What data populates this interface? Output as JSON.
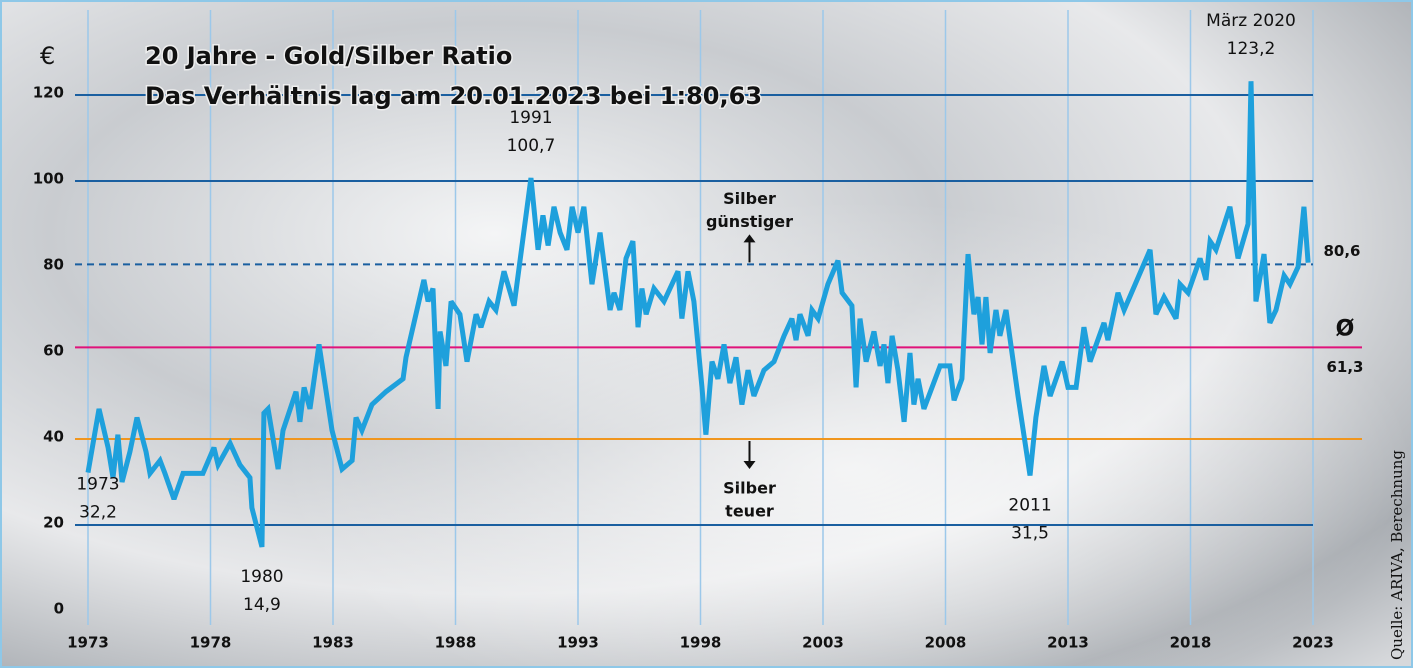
{
  "chart_data": {
    "type": "line",
    "title": "20 Jahre - Gold/Silber Ratio",
    "subtitle": "Das Verhältnis lag am 20.01.2023 bei 1:80,63",
    "y_unit": "€",
    "source": "Quelle: ARIVA, Berechnung",
    "xlim": [
      1972.4,
      2025.2
    ],
    "xticks": [
      1973,
      1978,
      1983,
      1988,
      1993,
      1998,
      2003,
      2008,
      2013,
      2018,
      2023
    ],
    "ylim": [
      0,
      125
    ],
    "yticks": [
      0,
      20,
      40,
      60,
      80,
      100,
      120
    ],
    "grid": true,
    "series": [
      {
        "name": "Gold/Silber Ratio",
        "color": "#1ea0dc",
        "x": [
          1973.0,
          1973.45,
          1973.82,
          1974.02,
          1974.22,
          1974.39,
          1974.71,
          1975.0,
          1975.37,
          1975.53,
          1975.94,
          1976.14,
          1976.51,
          1976.88,
          1977.69,
          1978.14,
          1978.31,
          1978.8,
          1979.2,
          1979.61,
          1979.69,
          1980.1,
          1980.18,
          1980.35,
          1980.76,
          1980.96,
          1981.49,
          1981.65,
          1981.82,
          1982.06,
          1982.43,
          1982.96,
          1983.37,
          1983.78,
          1983.94,
          1984.18,
          1984.59,
          1985.16,
          1985.86,
          1985.98,
          1986.71,
          1986.88,
          1987.08,
          1987.29,
          1987.37,
          1987.61,
          1987.82,
          1988.18,
          1988.47,
          1988.84,
          1989.04,
          1989.37,
          1989.65,
          1989.98,
          1990.39,
          1991.08,
          1991.37,
          1991.57,
          1991.78,
          1992.02,
          1992.27,
          1992.55,
          1992.76,
          1993.0,
          1993.24,
          1993.57,
          1993.9,
          1994.31,
          1994.47,
          1994.71,
          1994.96,
          1995.24,
          1995.45,
          1995.61,
          1995.78,
          1996.1,
          1996.51,
          1997.08,
          1997.24,
          1997.49,
          1997.73,
          1998.06,
          1998.22,
          1998.47,
          1998.71,
          1998.96,
          1999.2,
          1999.45,
          1999.69,
          1999.94,
          2000.18,
          2000.59,
          2001.0,
          2001.41,
          2001.73,
          2001.9,
          2002.06,
          2002.39,
          2002.55,
          2002.8,
          2003.2,
          2003.61,
          2003.78,
          2004.18,
          2004.35,
          2004.51,
          2004.76,
          2005.08,
          2005.33,
          2005.49,
          2005.65,
          2005.82,
          2006.06,
          2006.31,
          2006.55,
          2006.71,
          2006.88,
          2007.12,
          2007.78,
          2008.18,
          2008.35,
          2008.67,
          2008.92,
          2009.16,
          2009.33,
          2009.49,
          2009.65,
          2009.82,
          2010.06,
          2010.22,
          2010.47,
          2010.96,
          2011.45,
          2011.69,
          2012.02,
          2012.27,
          2012.76,
          2013.0,
          2013.33,
          2013.65,
          2013.9,
          2014.47,
          2014.63,
          2015.04,
          2015.29,
          2016.35,
          2016.59,
          2016.92,
          2017.41,
          2017.57,
          2017.9,
          2018.39,
          2018.63,
          2018.8,
          2019.04,
          2019.61,
          2019.94,
          2020.35,
          2020.47,
          2020.67,
          2021.0,
          2021.24,
          2021.49,
          2021.82,
          2022.06,
          2022.39,
          2022.63,
          2022.8
        ],
        "values": [
          32.2,
          47,
          38,
          31,
          41,
          30,
          37,
          45,
          37,
          32,
          35,
          32,
          26,
          32,
          32,
          38,
          34,
          39,
          34,
          31,
          24,
          14.9,
          46,
          47,
          33,
          42,
          51,
          44,
          52,
          47,
          62,
          42,
          33,
          35,
          45,
          42,
          48,
          51,
          54,
          59,
          77,
          72,
          75,
          47,
          65,
          57,
          72,
          69,
          58,
          69,
          66,
          72,
          70,
          79,
          71,
          100.7,
          84,
          92,
          85,
          94,
          88,
          84,
          94,
          88,
          94,
          76,
          88,
          70,
          74,
          70,
          82,
          86,
          66,
          75,
          69,
          75,
          72,
          79,
          68,
          79,
          72,
          52,
          41,
          58,
          54,
          62,
          53,
          59,
          48,
          56,
          50,
          56,
          58,
          64,
          68,
          63,
          69,
          64,
          70,
          68,
          76,
          81.5,
          74,
          71,
          52,
          68,
          58,
          65,
          57,
          62,
          53,
          64,
          56,
          44,
          60,
          48,
          54,
          47,
          57,
          57,
          49,
          54,
          83,
          69,
          73,
          62,
          73,
          60,
          70,
          64,
          70,
          50,
          31.5,
          45,
          57,
          50,
          58,
          52,
          52,
          66,
          58,
          67,
          63,
          74,
          70,
          84,
          69,
          73,
          68,
          76,
          74,
          82,
          77,
          86,
          84,
          94,
          82,
          90,
          123.2,
          72,
          83,
          67,
          70,
          78,
          76,
          80,
          94,
          81
        ]
      }
    ],
    "hlines": [
      {
        "value": 80.6,
        "label": "80,6",
        "color": "#1a5fa0",
        "dashed": true
      },
      {
        "value": 61.3,
        "symbol": "Ø",
        "label": "61,3",
        "color": "#e0127a"
      },
      {
        "value": 40,
        "color": "#f0961e"
      }
    ],
    "annotations": [
      {
        "x": 1973,
        "y": 32.2,
        "label": "1973",
        "value_label": "32,2",
        "position": "below-left"
      },
      {
        "x": 1980.1,
        "y": 14.9,
        "label": "1980",
        "value_label": "14,9",
        "position": "below"
      },
      {
        "x": 1991.08,
        "y": 100.7,
        "label": "1991",
        "value_label": "100,7",
        "position": "above"
      },
      {
        "x": 2011.45,
        "y": 31.5,
        "label": "2011",
        "value_label": "31,5",
        "position": "below"
      },
      {
        "x": 2020.47,
        "y": 123.2,
        "label": "März 2020",
        "value_label": "123,2",
        "position": "above"
      }
    ],
    "notes": [
      {
        "lines": [
          "Silber",
          "günstiger"
        ],
        "direction": "up",
        "anchor": 80.6,
        "x": 2000
      },
      {
        "lines": [
          "Silber",
          "teuer"
        ],
        "direction": "down",
        "anchor": 40,
        "x": 2000
      }
    ]
  }
}
